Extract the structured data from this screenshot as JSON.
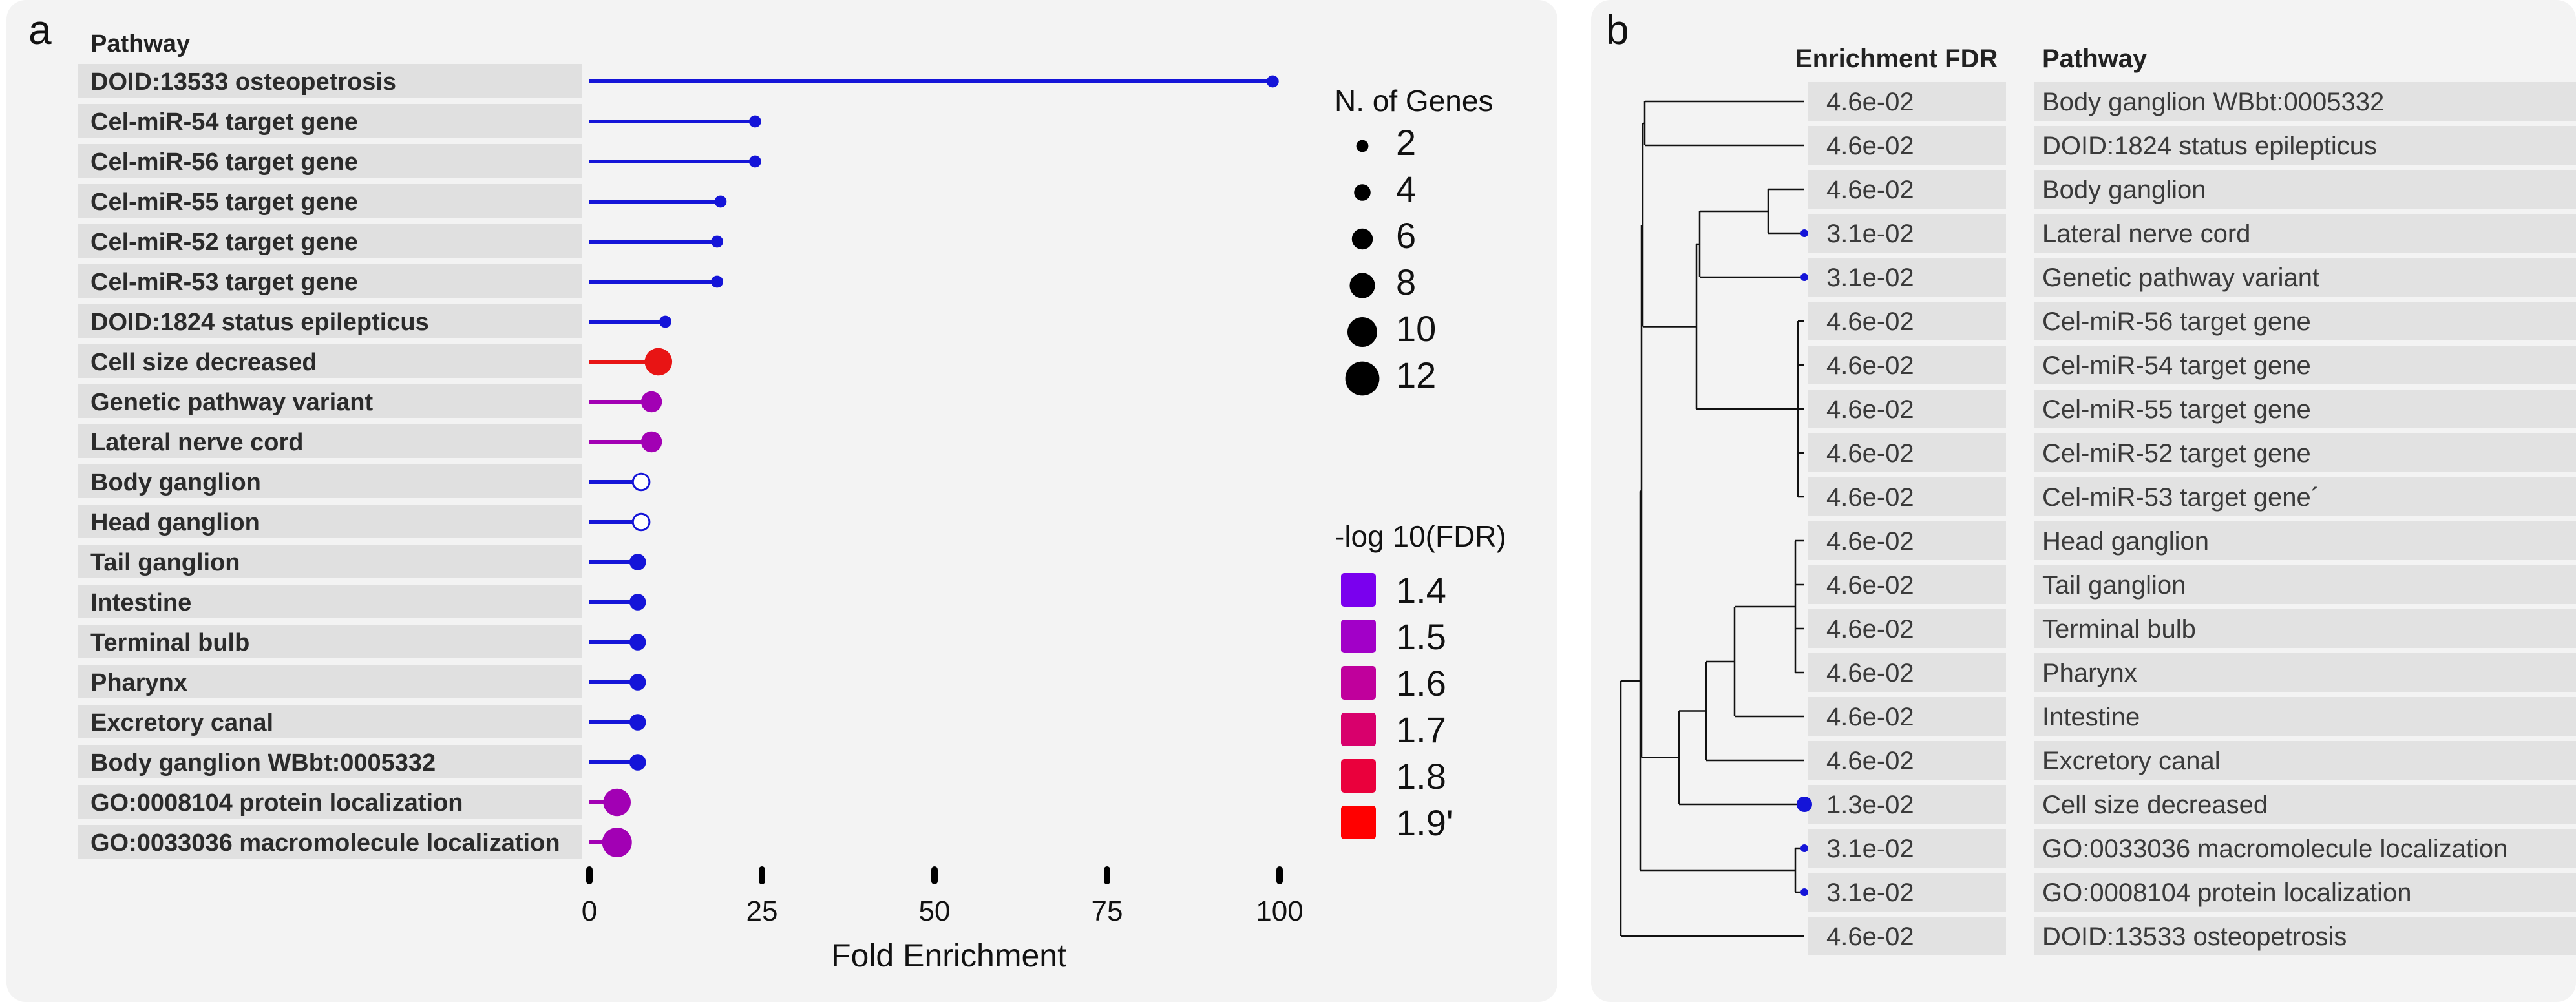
{
  "panel_a": {
    "letter": "a",
    "header": "Pathway",
    "xlabel": "Fold Enrichment",
    "size_legend_title": "N. of Genes",
    "color_legend_title": "-log 10(FDR)",
    "size_legend": [
      {
        "label": "2",
        "value": 2
      },
      {
        "label": "4",
        "value": 4
      },
      {
        "label": "6",
        "value": 6
      },
      {
        "label": "8",
        "value": 8
      },
      {
        "label": "10",
        "value": 10
      },
      {
        "label": "12",
        "value": 12
      }
    ],
    "color_legend": [
      {
        "label": "1.4",
        "color": "#7a00ee"
      },
      {
        "label": "1.5",
        "color": "#a200c8"
      },
      {
        "label": "1.6",
        "color": "#c0009c"
      },
      {
        "label": "1.7",
        "color": "#d8006c"
      },
      {
        "label": "1.8",
        "color": "#ea003c"
      },
      {
        "label": "1.9'",
        "color": "#ff0000"
      }
    ]
  },
  "panel_b": {
    "letter": "b",
    "fdr_header": "Enrichment FDR",
    "pathway_header": "Pathway",
    "rows": [
      {
        "fdr": "4.6e-02",
        "pathway": "Body ganglion WBbt:0005332",
        "dot": false
      },
      {
        "fdr": "4.6e-02",
        "pathway": "DOID:1824 status epilepticus",
        "dot": false
      },
      {
        "fdr": "4.6e-02",
        "pathway": "Body ganglion",
        "dot": false
      },
      {
        "fdr": "3.1e-02",
        "pathway": "Lateral nerve cord",
        "dot": true
      },
      {
        "fdr": "3.1e-02",
        "pathway": "Genetic pathway variant",
        "dot": true
      },
      {
        "fdr": "4.6e-02",
        "pathway": "Cel-miR-56 target gene",
        "dot": false
      },
      {
        "fdr": "4.6e-02",
        "pathway": "Cel-miR-54 target gene",
        "dot": false
      },
      {
        "fdr": "4.6e-02",
        "pathway": "Cel-miR-55 target gene",
        "dot": false
      },
      {
        "fdr": "4.6e-02",
        "pathway": "Cel-miR-52 target gene",
        "dot": false
      },
      {
        "fdr": "4.6e-02",
        "pathway": "Cel-miR-53 target gene´",
        "dot": false
      },
      {
        "fdr": "4.6e-02",
        "pathway": "Head ganglion",
        "dot": false
      },
      {
        "fdr": "4.6e-02",
        "pathway": "Tail ganglion",
        "dot": false
      },
      {
        "fdr": "4.6e-02",
        "pathway": "Terminal bulb",
        "dot": false
      },
      {
        "fdr": "4.6e-02",
        "pathway": "Pharynx",
        "dot": false
      },
      {
        "fdr": "4.6e-02",
        "pathway": "Intestine",
        "dot": false
      },
      {
        "fdr": "4.6e-02",
        "pathway": "Excretory canal",
        "dot": false
      },
      {
        "fdr": "1.3e-02",
        "pathway": "Cell size decreased",
        "dot": true
      },
      {
        "fdr": "3.1e-02",
        "pathway": "GO:0033036 macromolecule localization",
        "dot": true
      },
      {
        "fdr": "3.1e-02",
        "pathway": "GO:0008104 protein localization",
        "dot": true
      },
      {
        "fdr": "4.6e-02",
        "pathway": "DOID:13533 osteopetrosis",
        "dot": false
      }
    ]
  },
  "chart_data": {
    "type": "scatter",
    "subtype": "lollipop",
    "xlabel": "Fold Enrichment",
    "xlim": [
      0,
      100
    ],
    "xticks": [
      0,
      25,
      50,
      75,
      100
    ],
    "categories": [
      "DOID:13533 osteopetrosis",
      "Cel-miR-54 target gene",
      "Cel-miR-56 target gene",
      "Cel-miR-55 target gene",
      "Cel-miR-52 target gene",
      "Cel-miR-53 target gene",
      "DOID:1824 status epilepticus",
      "Cell size decreased",
      "Genetic pathway variant",
      "Lateral nerve cord",
      "Body ganglion",
      "Head ganglion",
      "Tail ganglion",
      "Intestine",
      "Terminal bulb",
      "Pharynx",
      "Excretory canal",
      "Body ganglion WBbt:0005332",
      "GO:0008104 protein localization",
      "GO:0033036 macromolecule localization"
    ],
    "fold_enrichment": [
      99,
      24,
      24,
      19,
      18.5,
      18.5,
      11,
      10,
      9,
      9,
      7.5,
      7.5,
      7,
      7,
      7,
      7,
      7,
      7,
      4,
      4
    ],
    "n_genes": [
      2,
      2,
      2,
      2,
      2,
      2,
      2,
      9,
      6,
      6,
      4,
      4,
      4,
      4,
      4,
      4,
      4,
      4,
      9,
      10
    ],
    "neg_log10_fdr": [
      1.34,
      1.34,
      1.34,
      1.34,
      1.34,
      1.34,
      1.34,
      1.89,
      1.51,
      1.51,
      1.34,
      1.34,
      1.34,
      1.34,
      1.34,
      1.34,
      1.34,
      1.34,
      1.51,
      1.51
    ],
    "colors": [
      "#1414d8",
      "#1414d8",
      "#1414d8",
      "#1414d8",
      "#1414d8",
      "#1414d8",
      "#1414d8",
      "#e81414",
      "#a200b4",
      "#a200b4",
      "#1414d8",
      "#1414d8",
      "#1414d8",
      "#1414d8",
      "#1414d8",
      "#1414d8",
      "#1414d8",
      "#1414d8",
      "#a200b4",
      "#a200b4"
    ],
    "hollow": [
      false,
      false,
      false,
      false,
      false,
      false,
      false,
      false,
      false,
      false,
      true,
      true,
      false,
      false,
      false,
      false,
      false,
      false,
      false,
      false
    ]
  }
}
